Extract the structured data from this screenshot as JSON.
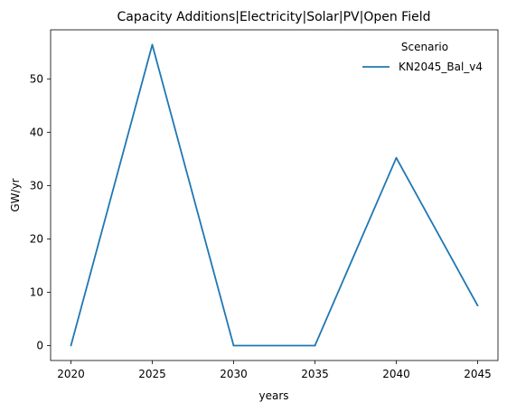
{
  "chart_data": {
    "type": "line",
    "title": "Capacity Additions|Electricity|Solar|PV|Open Field",
    "xlabel": "years",
    "ylabel": "GW/yr",
    "x": [
      2020,
      2025,
      2030,
      2035,
      2040,
      2045
    ],
    "xticks": [
      "2020",
      "2025",
      "2030",
      "2035",
      "2040",
      "2045"
    ],
    "yticks": [
      "0",
      "10",
      "20",
      "30",
      "40",
      "50"
    ],
    "xlim": [
      2018.75,
      2046.25
    ],
    "ylim": [
      -2.8,
      59.2
    ],
    "grid": false,
    "legend_title": "Scenario",
    "legend_position": "top-right",
    "series": [
      {
        "name": "KN2045_Bal_v4",
        "color": "#1f77b4",
        "values": [
          0,
          56.4,
          0,
          0,
          35.2,
          7.5
        ]
      }
    ]
  }
}
